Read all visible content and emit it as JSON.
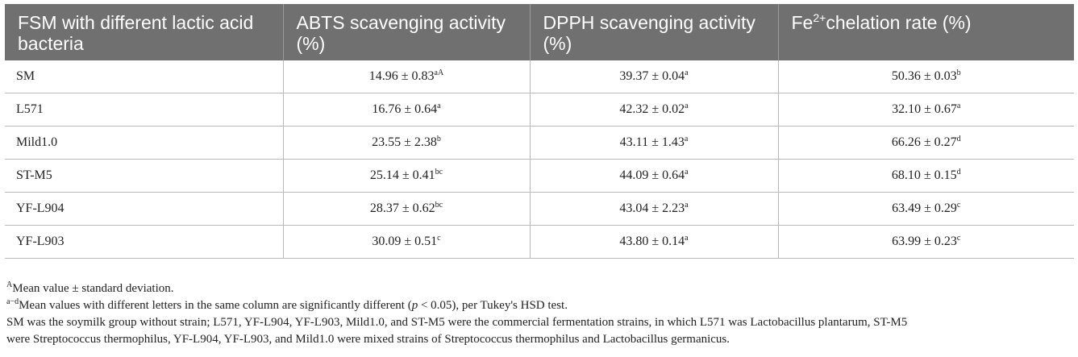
{
  "table": {
    "headers": [
      {
        "text": "FSM with different lactic acid bacteria",
        "sup": "",
        "after": ""
      },
      {
        "text": "ABTS scavenging activity (%)",
        "sup": "",
        "after": ""
      },
      {
        "text": "DPPH scavenging activity (%)",
        "sup": "",
        "after": ""
      },
      {
        "text": "Fe",
        "sup": "2+",
        "after": "chelation rate (%)"
      }
    ],
    "rows": [
      {
        "name": "SM",
        "abts": {
          "value": "14.96 ± 0.83",
          "sup": "aA"
        },
        "dpph": {
          "value": "39.37 ± 0.04",
          "sup": "a"
        },
        "fe": {
          "value": "50.36 ± 0.03",
          "sup": "b"
        }
      },
      {
        "name": "L571",
        "abts": {
          "value": "16.76 ± 0.64",
          "sup": "a"
        },
        "dpph": {
          "value": "42.32 ± 0.02",
          "sup": "a"
        },
        "fe": {
          "value": "32.10 ± 0.67",
          "sup": "a"
        }
      },
      {
        "name": "Mild1.0",
        "abts": {
          "value": "23.55 ± 2.38",
          "sup": "b"
        },
        "dpph": {
          "value": "43.11 ± 1.43",
          "sup": "a"
        },
        "fe": {
          "value": "66.26 ± 0.27",
          "sup": "d"
        }
      },
      {
        "name": "ST-M5",
        "abts": {
          "value": "25.14 ± 0.41",
          "sup": "bc"
        },
        "dpph": {
          "value": "44.09 ± 0.64",
          "sup": "a"
        },
        "fe": {
          "value": "68.10 ± 0.15",
          "sup": "d"
        }
      },
      {
        "name": "YF-L904",
        "abts": {
          "value": "28.37 ± 0.62",
          "sup": "bc"
        },
        "dpph": {
          "value": "43.04 ± 2.23",
          "sup": "a"
        },
        "fe": {
          "value": "63.49 ± 0.29",
          "sup": "c"
        }
      },
      {
        "name": "YF-L903",
        "abts": {
          "value": "30.09 ± 0.51",
          "sup": "c"
        },
        "dpph": {
          "value": "43.80 ± 0.14",
          "sup": "a"
        },
        "fe": {
          "value": "63.99 ± 0.23",
          "sup": "c"
        }
      }
    ]
  },
  "footnotes": {
    "fn1": {
      "sup": "A",
      "text": "Mean value ± standard deviation."
    },
    "fn2": {
      "sup": "a−d",
      "pre": "Mean values with different letters in the same column are significantly different (",
      "italic": "p",
      "post": " < 0.05), per Tukey's HSD test."
    },
    "fn3": {
      "text": "SM was the soymilk group without strain; L571, YF-L904, YF-L903, Mild1.0, and ST-M5 were the commercial fermentation strains, in which L571 was Lactobacillus plantarum, ST-M5"
    },
    "fn4": {
      "text": "were Streptococcus thermophilus, YF-L904, YF-L903, and Mild1.0 were mixed strains of Streptococcus thermophilus and Lactobacillus germanicus."
    }
  },
  "colors": {
    "header_bg": "#707070",
    "header_text": "#ffffff",
    "rule": "#b8b8b8"
  }
}
